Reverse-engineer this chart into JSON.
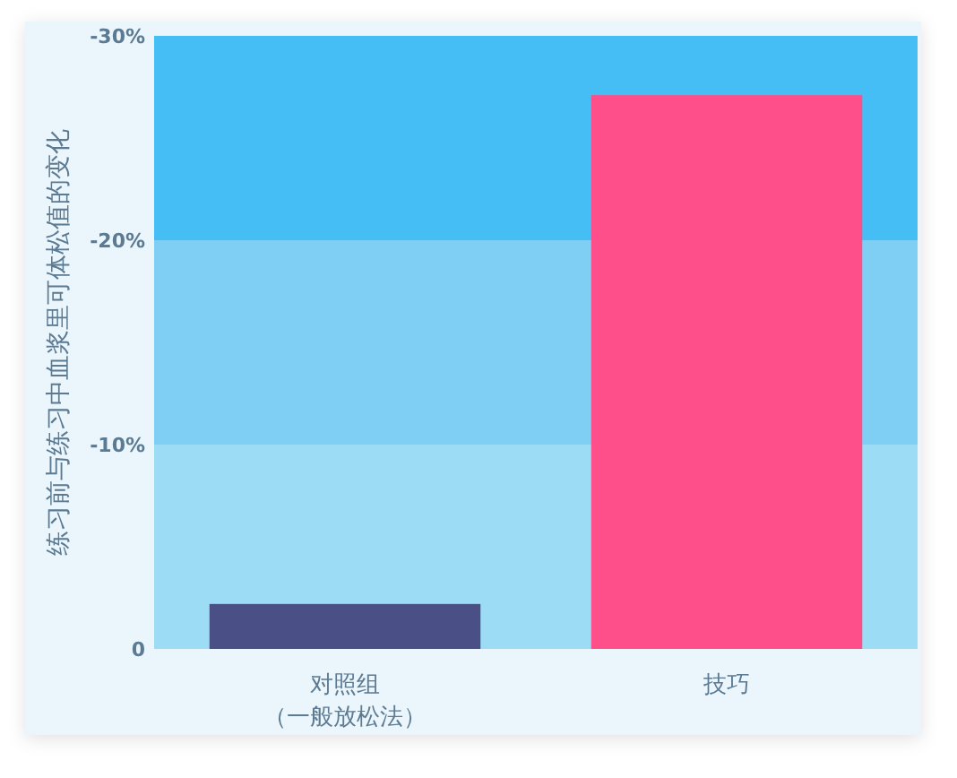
{
  "chart_data": {
    "type": "bar",
    "ylabel": "练习前与练习中血浆里可体松值的变化",
    "categories": [
      "对照组（一般放松法）",
      "技巧"
    ],
    "values": [
      -2.2,
      -27.1
    ],
    "colors": [
      "#4a5085",
      "#ff4f8b"
    ],
    "ylim": [
      0,
      -30
    ],
    "yticks": [
      {
        "value": -30,
        "label": "-30%"
      },
      {
        "value": -20,
        "label": "-20%"
      },
      {
        "value": -10,
        "label": "-10%"
      },
      0
    ],
    "bands": [
      {
        "axis": "y",
        "from": 0,
        "to": -10,
        "color": "#9ddcf5"
      },
      {
        "axis": "y",
        "from": -10,
        "to": -20,
        "color": "#7fcff5"
      },
      {
        "axis": "y",
        "from": -20,
        "to": -30,
        "color": "#45bdf5"
      }
    ],
    "grid": false
  }
}
